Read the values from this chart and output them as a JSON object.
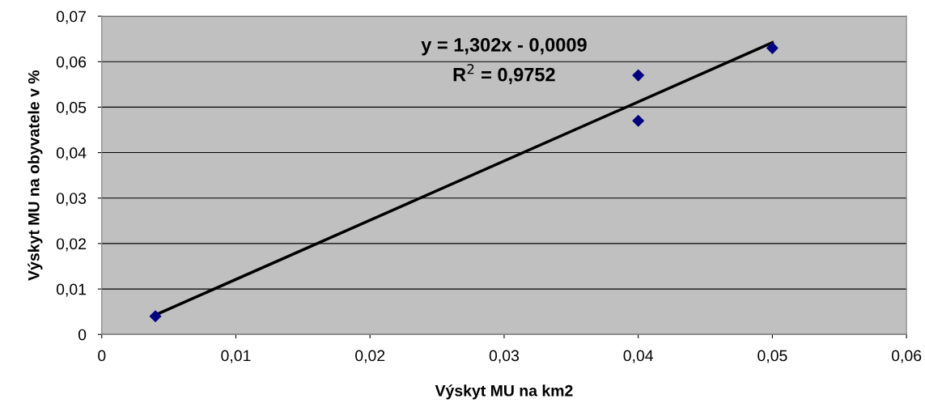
{
  "chart_data": {
    "type": "scatter",
    "xlabel": "Výskyt MU na km2",
    "ylabel": "Výskyt MU na obyvatele v %",
    "series": [
      {
        "color": "#000080",
        "marker": "diamond",
        "x": [
          0.004,
          0.04,
          0.04,
          0.05
        ],
        "values": [
          0.004,
          0.057,
          0.047,
          0.063
        ]
      },
      {
        "type": "line",
        "color": "#000000",
        "marker": "none",
        "line_style": "solid",
        "x": [
          0.004,
          0.05
        ],
        "values": [
          0.0043,
          0.0642
        ]
      }
    ],
    "annotations": [
      "y = 1,302x - 0,0009",
      "R$^{2}$ = 0,9752"
    ],
    "xlim": [
      0,
      0.06
    ],
    "ylim": [
      0,
      0.07
    ],
    "xticks": [
      0,
      {
        "value": 0.01,
        "label": "0,01"
      },
      {
        "value": 0.02,
        "label": "0,02"
      },
      {
        "value": 0.03,
        "label": "0,03"
      },
      {
        "value": 0.04,
        "label": "0,04"
      },
      {
        "value": 0.05,
        "label": "0,05"
      },
      {
        "value": 0.06,
        "label": "0,06"
      }
    ],
    "yticks": [
      0,
      {
        "value": 0.01,
        "label": "0,01"
      },
      {
        "value": 0.02,
        "label": "0,02"
      },
      {
        "value": 0.03,
        "label": "0,03"
      },
      {
        "value": 0.04,
        "label": "0,04"
      },
      {
        "value": 0.05,
        "label": "0,05"
      },
      {
        "value": 0.06,
        "label": "0,06"
      },
      {
        "value": 0.07,
        "label": "0,07"
      }
    ],
    "grid": "y",
    "legend": false
  }
}
